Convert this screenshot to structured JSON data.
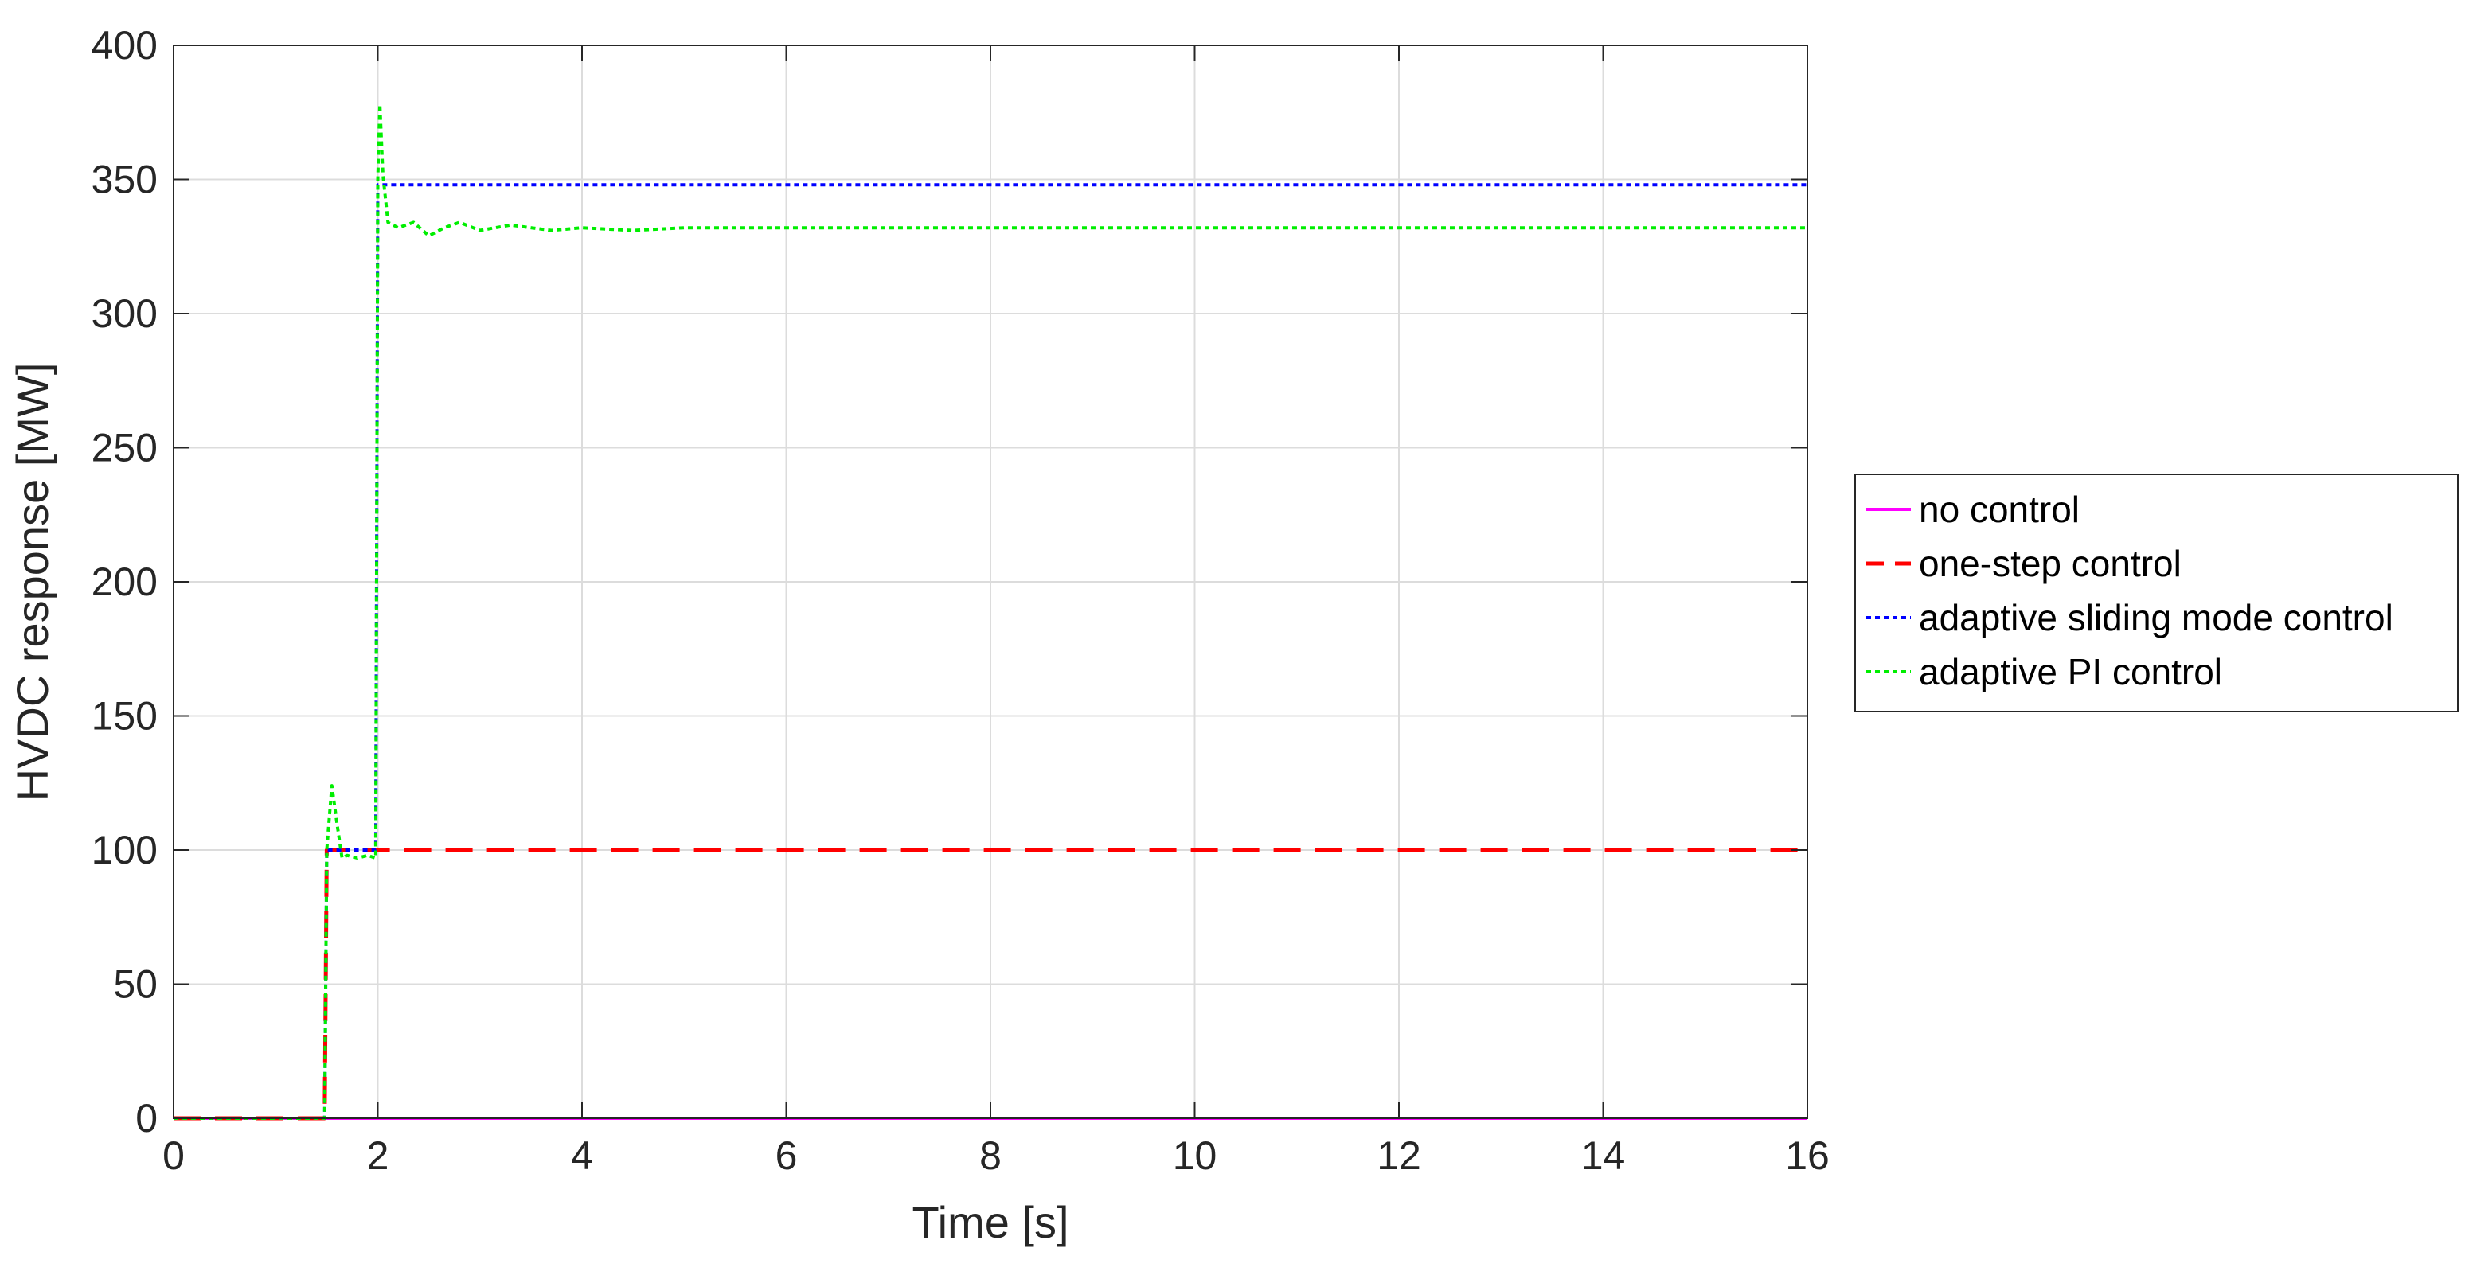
{
  "chart_data": {
    "type": "line",
    "title": "",
    "xlabel": "Time [s]",
    "ylabel": "HVDC response [MW]",
    "xlim": [
      0,
      16
    ],
    "ylim": [
      0,
      400
    ],
    "xticks": [
      0,
      2,
      4,
      6,
      8,
      10,
      12,
      14,
      16
    ],
    "yticks": [
      0,
      50,
      100,
      150,
      200,
      250,
      300,
      350,
      400
    ],
    "grid": true,
    "legend_position": "outside-right",
    "series": [
      {
        "name": "no control",
        "color": "#ff00ff",
        "style": "solid",
        "x": [
          0,
          16
        ],
        "y": [
          0,
          0
        ]
      },
      {
        "name": "one-step control",
        "color": "#ff0000",
        "style": "dashed",
        "x": [
          0,
          1.48,
          1.5,
          16
        ],
        "y": [
          0,
          0,
          100,
          100
        ]
      },
      {
        "name": "adaptive sliding mode control",
        "color": "#0000ff",
        "style": "dotted",
        "x": [
          0,
          1.48,
          1.5,
          1.98,
          2.0,
          16
        ],
        "y": [
          0,
          0,
          100,
          100,
          348,
          348
        ]
      },
      {
        "name": "adaptive PI control",
        "color": "#00ee00",
        "style": "dotted",
        "x": [
          0,
          1.48,
          1.5,
          1.55,
          1.6,
          1.65,
          1.7,
          1.8,
          1.9,
          1.98,
          2.0,
          2.02,
          2.05,
          2.1,
          2.2,
          2.35,
          2.5,
          2.65,
          2.8,
          3.0,
          3.3,
          3.7,
          4.0,
          4.5,
          5.0,
          16
        ],
        "y": [
          0,
          0,
          100,
          124,
          110,
          97,
          98,
          97,
          98,
          97,
          350,
          378,
          352,
          334,
          332,
          334,
          329,
          332,
          334,
          331,
          333,
          331,
          332,
          331,
          332,
          332
        ]
      }
    ]
  }
}
